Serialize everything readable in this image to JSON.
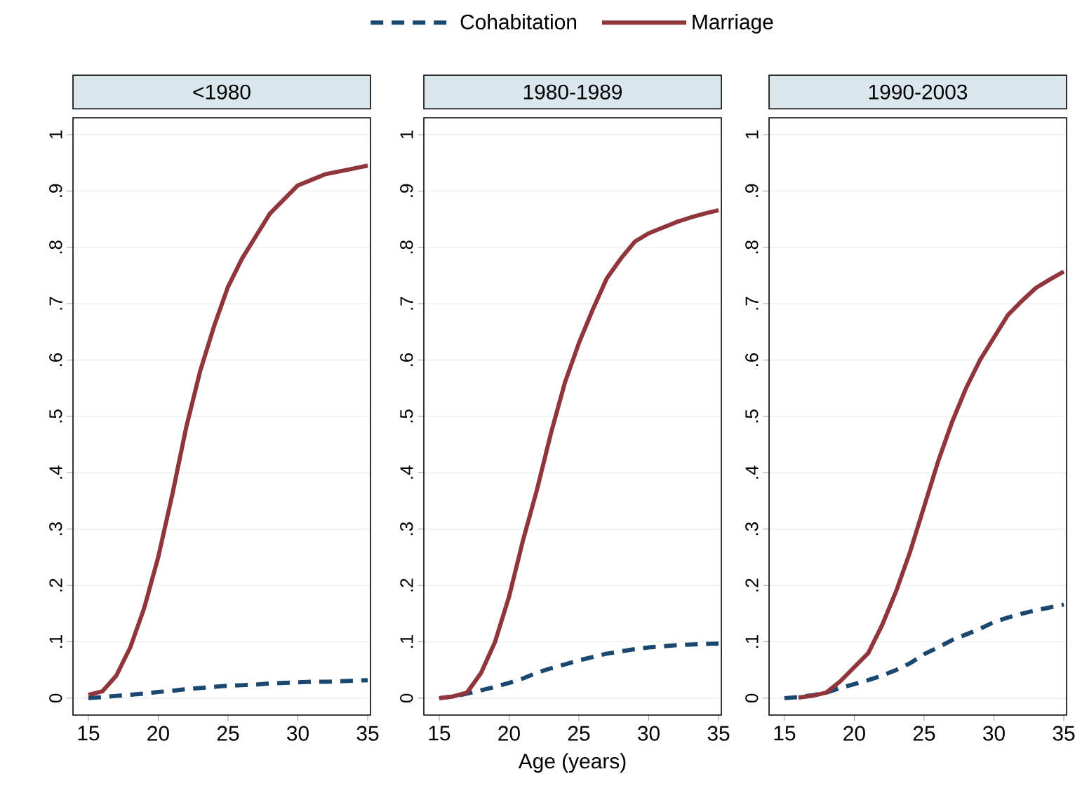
{
  "chart_data": [
    {
      "type": "line",
      "title": "<1980",
      "x": [
        15,
        16,
        17,
        18,
        19,
        20,
        21,
        22,
        23,
        24,
        25,
        26,
        27,
        28,
        29,
        30,
        31,
        32,
        33,
        34,
        35
      ],
      "xlim": [
        13.9,
        35.2
      ],
      "xticks": [
        15,
        20,
        25,
        30,
        35
      ],
      "ylim": [
        -0.03,
        1.03
      ],
      "yticks": [
        0,
        {
          "value": 0.1,
          "label": ".1"
        },
        {
          "value": 0.2,
          "label": ".2"
        },
        {
          "value": 0.3,
          "label": ".3"
        },
        {
          "value": 0.4,
          "label": ".4"
        },
        {
          "value": 0.5,
          "label": ".5"
        },
        {
          "value": 0.6,
          "label": ".6"
        },
        {
          "value": 0.7,
          "label": ".7"
        },
        {
          "value": 0.8,
          "label": ".8"
        },
        {
          "value": 0.9,
          "label": ".9"
        },
        1
      ],
      "grid": "y",
      "series": [
        {
          "color": "#1a476f",
          "line_style": "dashed",
          "values": [
            0,
            0.002,
            0.004,
            0.006,
            0.008,
            0.011,
            0.013,
            0.016,
            0.018,
            0.02,
            0.022,
            0.023,
            0.024,
            0.026,
            0.027,
            0.028,
            0.029,
            0.029,
            0.03,
            0.031,
            0.032
          ]
        },
        {
          "color": "#90353b",
          "line_style": "solid",
          "values": [
            0.006,
            0.012,
            0.04,
            0.09,
            0.16,
            0.25,
            0.36,
            0.48,
            0.58,
            0.66,
            0.73,
            0.78,
            0.82,
            0.86,
            0.885,
            0.91,
            0.92,
            0.93,
            0.935,
            0.94,
            0.945
          ]
        }
      ]
    },
    {
      "type": "line",
      "title": "1980-1989",
      "xlabel": "Age (years)",
      "legend": "top",
      "x": [
        15,
        16,
        17,
        18,
        19,
        20,
        21,
        22,
        23,
        24,
        25,
        26,
        27,
        28,
        29,
        30,
        31,
        32,
        33,
        34,
        35
      ],
      "xlim": [
        13.9,
        35.2
      ],
      "xticks": [
        15,
        20,
        25,
        30,
        35
      ],
      "ylim": [
        -0.03,
        1.03
      ],
      "yticks": [
        0,
        {
          "value": 0.1,
          "label": ".1"
        },
        {
          "value": 0.2,
          "label": ".2"
        },
        {
          "value": 0.3,
          "label": ".3"
        },
        {
          "value": 0.4,
          "label": ".4"
        },
        {
          "value": 0.5,
          "label": ".5"
        },
        {
          "value": 0.6,
          "label": ".6"
        },
        {
          "value": 0.7,
          "label": ".7"
        },
        {
          "value": 0.8,
          "label": ".8"
        },
        {
          "value": 0.9,
          "label": ".9"
        },
        1
      ],
      "grid": "y",
      "series": [
        {
          "name": "Cohabitation",
          "color": "#1a476f",
          "line_style": "dashed",
          "values": [
            0,
            0.003,
            0.008,
            0.014,
            0.02,
            0.027,
            0.035,
            0.045,
            0.053,
            0.06,
            0.067,
            0.073,
            0.079,
            0.083,
            0.087,
            0.09,
            0.092,
            0.094,
            0.095,
            0.096,
            0.097
          ]
        },
        {
          "name": "Marriage",
          "color": "#90353b",
          "line_style": "solid",
          "values": [
            0,
            0.003,
            0.01,
            0.045,
            0.1,
            0.18,
            0.28,
            0.37,
            0.47,
            0.56,
            0.63,
            0.69,
            0.745,
            0.78,
            0.81,
            0.825,
            0.835,
            0.845,
            0.853,
            0.86,
            0.866
          ]
        }
      ]
    },
    {
      "type": "line",
      "title": "1990-2003",
      "x": [
        15,
        16,
        17,
        18,
        19,
        20,
        21,
        22,
        23,
        24,
        25,
        26,
        27,
        28,
        29,
        30,
        31,
        32,
        33,
        34,
        35
      ],
      "xlim": [
        13.9,
        35.2
      ],
      "xticks": [
        15,
        20,
        25,
        30,
        35
      ],
      "ylim": [
        -0.03,
        1.03
      ],
      "yticks": [
        0,
        {
          "value": 0.1,
          "label": ".1"
        },
        {
          "value": 0.2,
          "label": ".2"
        },
        {
          "value": 0.3,
          "label": ".3"
        },
        {
          "value": 0.4,
          "label": ".4"
        },
        {
          "value": 0.5,
          "label": ".5"
        },
        {
          "value": 0.6,
          "label": ".6"
        },
        {
          "value": 0.7,
          "label": ".7"
        },
        {
          "value": 0.8,
          "label": ".8"
        },
        {
          "value": 0.9,
          "label": ".9"
        },
        1
      ],
      "grid": "y",
      "series": [
        {
          "color": "#1a476f",
          "line_style": "dashed",
          "values": [
            0,
            0.002,
            0.005,
            0.01,
            0.018,
            0.025,
            0.032,
            0.04,
            0.05,
            0.062,
            0.078,
            0.09,
            0.103,
            0.113,
            0.123,
            0.135,
            0.143,
            0.15,
            0.156,
            0.161,
            0.166
          ]
        },
        {
          "color": "#90353b",
          "line_style": "solid",
          "values": [
            null,
            0.001,
            0.004,
            0.01,
            0.03,
            0.055,
            0.08,
            0.13,
            0.19,
            0.26,
            0.34,
            0.42,
            0.49,
            0.55,
            0.6,
            0.64,
            0.68,
            0.705,
            0.728,
            0.743,
            0.757
          ]
        }
      ]
    }
  ]
}
